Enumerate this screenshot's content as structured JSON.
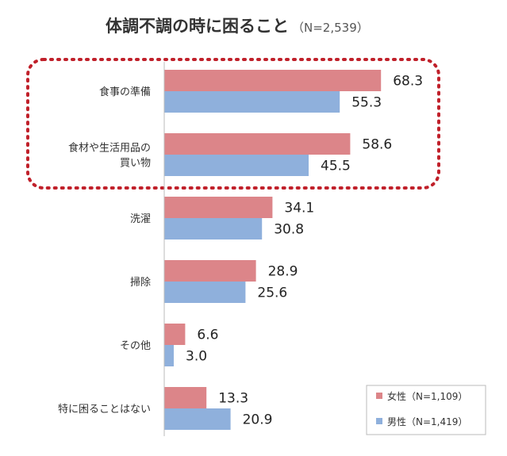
{
  "title": "体調不調の時に困ること",
  "title_n": "（N=2,539）",
  "colors": {
    "female": "#dc8589",
    "male": "#8fb0dc",
    "highlight_border": "#c0202a",
    "axis": "#bbbbbb"
  },
  "legend": [
    {
      "label": "女性（N=1,109）"
    },
    {
      "label": "男性（N=1,419）"
    }
  ],
  "chart_data": {
    "type": "bar",
    "orientation": "horizontal",
    "title": "体調不調の時に困ること",
    "categories": [
      [
        "食事の準備"
      ],
      [
        "食材や生活用品の",
        "買い物"
      ],
      [
        "洗濯"
      ],
      [
        "掃除"
      ],
      [
        "その他"
      ],
      [
        "特に困ることはない"
      ]
    ],
    "series": [
      {
        "name": "女性（N=1,109）",
        "values": [
          68.3,
          58.6,
          34.1,
          28.9,
          6.6,
          13.3
        ]
      },
      {
        "name": "男性（N=1,419）",
        "values": [
          55.3,
          45.5,
          30.8,
          25.6,
          3.0,
          20.9
        ]
      }
    ],
    "value_labels": [
      [
        "68.3",
        "58.6",
        "34.1",
        "28.9",
        "6.6",
        "13.3"
      ],
      [
        "55.3",
        "45.5",
        "30.8",
        "25.6",
        "3.0",
        "20.9"
      ]
    ],
    "highlighted_categories": [
      0,
      1
    ],
    "legend_position": "bottom-right",
    "grid": false
  }
}
